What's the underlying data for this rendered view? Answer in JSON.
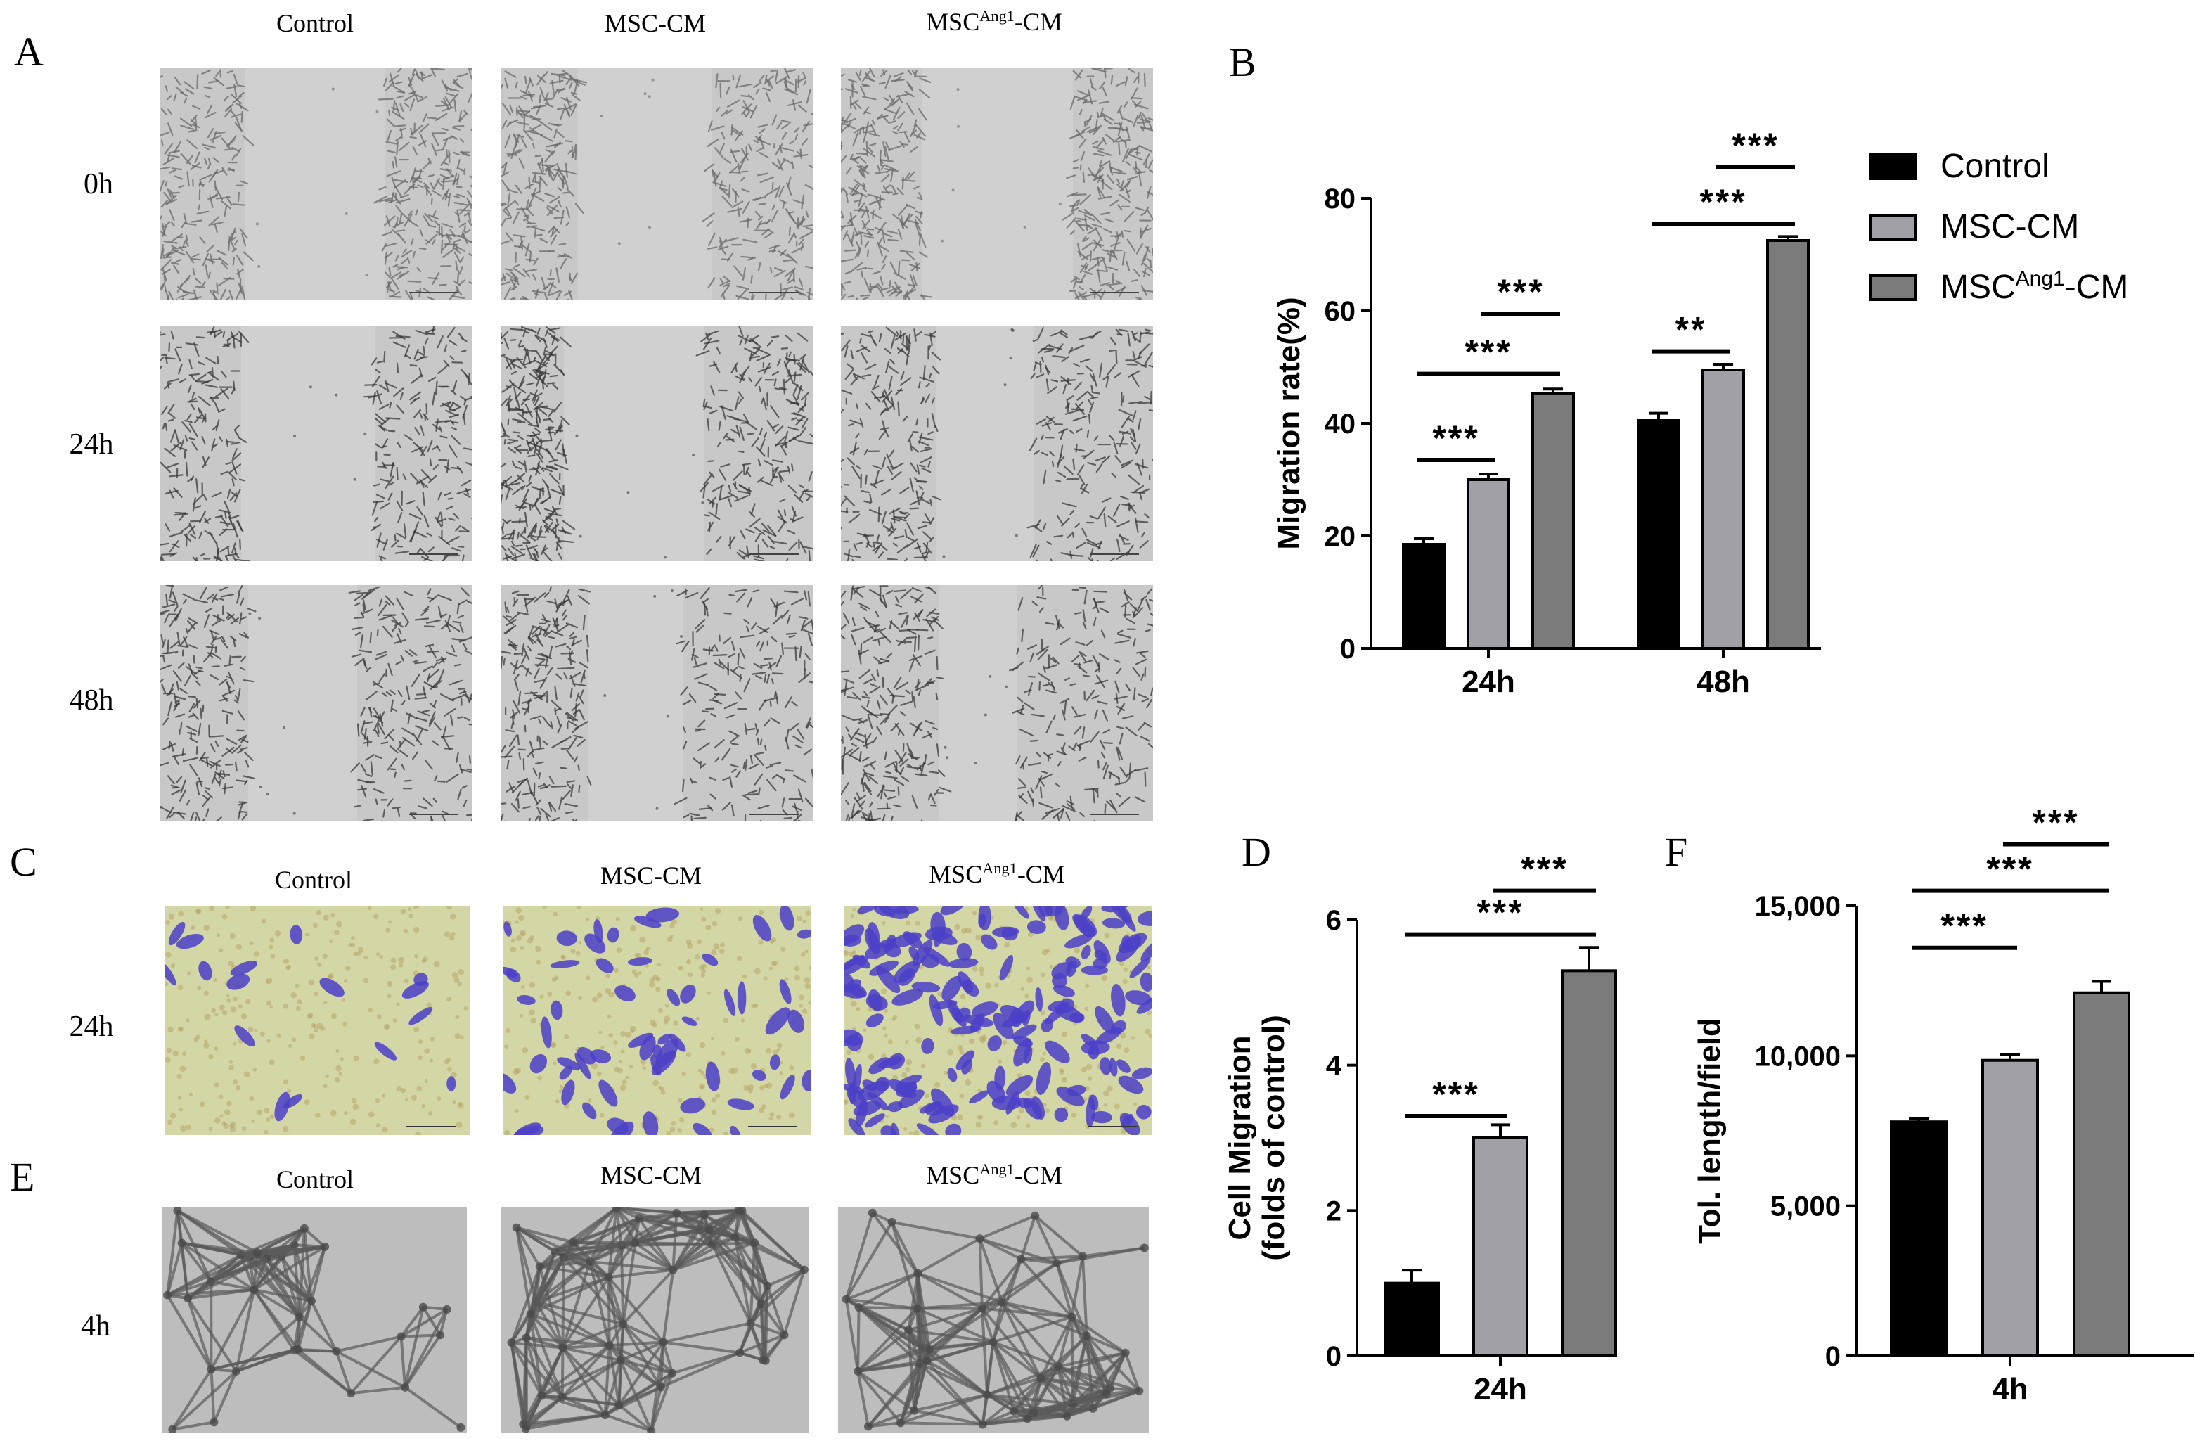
{
  "panels": {
    "A": "A",
    "B": "B",
    "C": "C",
    "D": "D",
    "E": "E",
    "F": "F"
  },
  "scratch": {
    "columns": [
      {
        "main": "Control",
        "sup": ""
      },
      {
        "main": "MSC-CM",
        "sup": ""
      },
      {
        "main": "MSC",
        "sup": "Ang1",
        "tail": "-CM"
      }
    ],
    "rows": [
      "0h",
      "24h",
      "48h"
    ]
  },
  "transwell": {
    "columns": [
      {
        "main": "Control",
        "sup": ""
      },
      {
        "main": "MSC-CM",
        "sup": ""
      },
      {
        "main": "MSC",
        "sup": "Ang1",
        "tail": "-CM"
      }
    ],
    "row": "24h"
  },
  "tube": {
    "columns": [
      {
        "main": "Control",
        "sup": ""
      },
      {
        "main": "MSC-CM",
        "sup": ""
      },
      {
        "main": "MSC",
        "sup": "Ang1",
        "tail": "-CM"
      }
    ],
    "row": "4h"
  },
  "colors": {
    "control": "#000000",
    "msc_cm": "#a0a0a6",
    "msc_ang1_cm": "#7a7a7a",
    "scratch_bg": "#c8c8c8",
    "transwell_bg": "#d3d7a6",
    "transwell_stain": "#4b3fc8"
  },
  "chart_data": [
    {
      "id": "B",
      "type": "bar",
      "categories": [
        "24h",
        "48h"
      ],
      "series": [
        {
          "name": "Control",
          "values": [
            18.5,
            40.5
          ],
          "errors": [
            1.0,
            1.3
          ]
        },
        {
          "name": "MSC-CM",
          "values": [
            30.0,
            49.5
          ],
          "errors": [
            1.0,
            1.0
          ]
        },
        {
          "name": "MSC^Ang1-CM",
          "values": [
            45.3,
            72.5
          ],
          "errors": [
            0.8,
            0.7
          ]
        }
      ],
      "legend": [
        {
          "main": "Control",
          "sup": "",
          "tail": ""
        },
        {
          "main": "MSC-CM",
          "sup": "",
          "tail": ""
        },
        {
          "main": "MSC",
          "sup": "Ang1",
          "tail": "-CM"
        }
      ],
      "ylabel": "Migration rate(%)",
      "ylim": [
        0,
        80
      ],
      "yticks": [
        "0",
        "20",
        "40",
        "60",
        "80"
      ],
      "ytick_values": [
        0,
        20,
        40,
        60,
        80
      ],
      "legend_position": "top-right",
      "significance": [
        {
          "group": 0,
          "from": 0,
          "to": 1,
          "label": "***"
        },
        {
          "group": 0,
          "from": 0,
          "to": 2,
          "label": "***"
        },
        {
          "group": 0,
          "from": 1,
          "to": 2,
          "label": "***"
        },
        {
          "group": 1,
          "from": 0,
          "to": 1,
          "label": "**"
        },
        {
          "group": 1,
          "from": 0,
          "to": 2,
          "label": "***"
        },
        {
          "group": 1,
          "from": 1,
          "to": 2,
          "label": "***"
        }
      ]
    },
    {
      "id": "D",
      "type": "bar",
      "categories": [
        "24h"
      ],
      "series": [
        {
          "name": "Control",
          "values": [
            1.0
          ],
          "errors": [
            0.18
          ]
        },
        {
          "name": "MSC-CM",
          "values": [
            3.0
          ],
          "errors": [
            0.18
          ]
        },
        {
          "name": "MSC^Ang1-CM",
          "values": [
            5.3
          ],
          "errors": [
            0.32
          ]
        }
      ],
      "ylabel": "Cell Migration",
      "ylabel2": "(folds of control)",
      "ylim": [
        0,
        6
      ],
      "yticks": [
        "0",
        "2",
        "4",
        "6"
      ],
      "ytick_values": [
        0,
        2,
        4,
        6
      ],
      "significance": [
        {
          "group": 0,
          "from": 0,
          "to": 1,
          "label": "***"
        },
        {
          "group": 0,
          "from": 0,
          "to": 2,
          "label": "***"
        },
        {
          "group": 0,
          "from": 1,
          "to": 2,
          "label": "***"
        }
      ]
    },
    {
      "id": "F",
      "type": "bar",
      "categories": [
        "4h"
      ],
      "series": [
        {
          "name": "Control",
          "values": [
            7800
          ],
          "errors": [
            120
          ]
        },
        {
          "name": "MSC-CM",
          "values": [
            9850
          ],
          "errors": [
            180
          ]
        },
        {
          "name": "MSC^Ang1-CM",
          "values": [
            12100
          ],
          "errors": [
            380
          ]
        }
      ],
      "ylabel": "Tol. length/field",
      "ylim": [
        0,
        15000
      ],
      "yticks": [
        "0",
        "5,000",
        "10,000",
        "15,000"
      ],
      "ytick_values": [
        0,
        5000,
        10000,
        15000
      ],
      "significance": [
        {
          "group": 0,
          "from": 0,
          "to": 1,
          "label": "***"
        },
        {
          "group": 0,
          "from": 0,
          "to": 2,
          "label": "***"
        },
        {
          "group": 0,
          "from": 1,
          "to": 2,
          "label": "***"
        }
      ]
    }
  ]
}
